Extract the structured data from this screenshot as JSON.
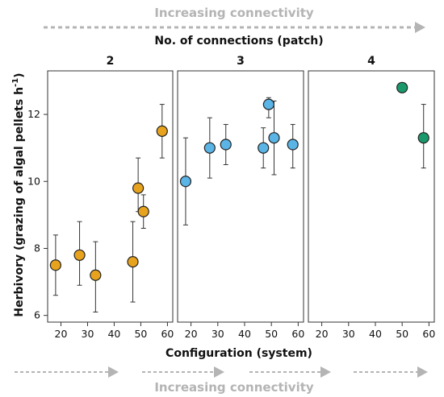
{
  "top_arrow_label": "Increasing connectivity",
  "bottom_arrow_label": "Increasing connectivity",
  "colors": {
    "arrow": "#b4b4b4",
    "patch_2": "#e8a31e",
    "patch_3": "#5ab4e5",
    "patch_4": "#1a9a6c",
    "marker_edge": "#222222"
  },
  "chart_data": {
    "type": "scatter",
    "title": "No. of connections (patch)",
    "xlabel": "Configuration (system)",
    "ylabel": "Herbivory (grazing of algal pellets h",
    "ylabel_superscript": "-1",
    "ylabel_close": ")",
    "xlim": [
      15,
      62
    ],
    "ylim": [
      5.8,
      13.3
    ],
    "x_ticks": [
      20,
      30,
      40,
      50,
      60
    ],
    "y_ticks": [
      6,
      8,
      10,
      12
    ],
    "x_tick_labels": [
      "20",
      "30",
      "40",
      "50",
      "60"
    ],
    "y_tick_labels": [
      "6",
      "8",
      "10",
      "12"
    ],
    "grid": false,
    "legend": "none",
    "facets": [
      {
        "label": "2",
        "color_key": "patch_2",
        "points": [
          {
            "x": 18,
            "y": 7.5,
            "low": 6.6,
            "high": 8.4
          },
          {
            "x": 27,
            "y": 7.8,
            "low": 6.9,
            "high": 8.8
          },
          {
            "x": 33,
            "y": 7.2,
            "low": 6.1,
            "high": 8.2
          },
          {
            "x": 47,
            "y": 7.6,
            "low": 6.4,
            "high": 8.8
          },
          {
            "x": 49,
            "y": 9.8,
            "low": 9.1,
            "high": 10.7
          },
          {
            "x": 51,
            "y": 9.1,
            "low": 8.6,
            "high": 9.6
          },
          {
            "x": 58,
            "y": 11.5,
            "low": 10.7,
            "high": 12.3
          }
        ]
      },
      {
        "label": "3",
        "color_key": "patch_3",
        "points": [
          {
            "x": 18,
            "y": 10.0,
            "low": 8.7,
            "high": 11.3
          },
          {
            "x": 27,
            "y": 11.0,
            "low": 10.1,
            "high": 11.9
          },
          {
            "x": 33,
            "y": 11.1,
            "low": 10.5,
            "high": 11.7
          },
          {
            "x": 47,
            "y": 11.0,
            "low": 10.4,
            "high": 11.6
          },
          {
            "x": 49,
            "y": 12.3,
            "low": 11.9,
            "high": 12.5
          },
          {
            "x": 51,
            "y": 11.3,
            "low": 10.2,
            "high": 12.4
          },
          {
            "x": 58,
            "y": 11.1,
            "low": 10.4,
            "high": 11.7
          }
        ]
      },
      {
        "label": "4",
        "color_key": "patch_4",
        "points": [
          {
            "x": 50,
            "y": 12.8,
            "low": null,
            "high": null
          },
          {
            "x": 58,
            "y": 11.3,
            "low": 10.4,
            "high": 12.3
          }
        ]
      }
    ]
  }
}
